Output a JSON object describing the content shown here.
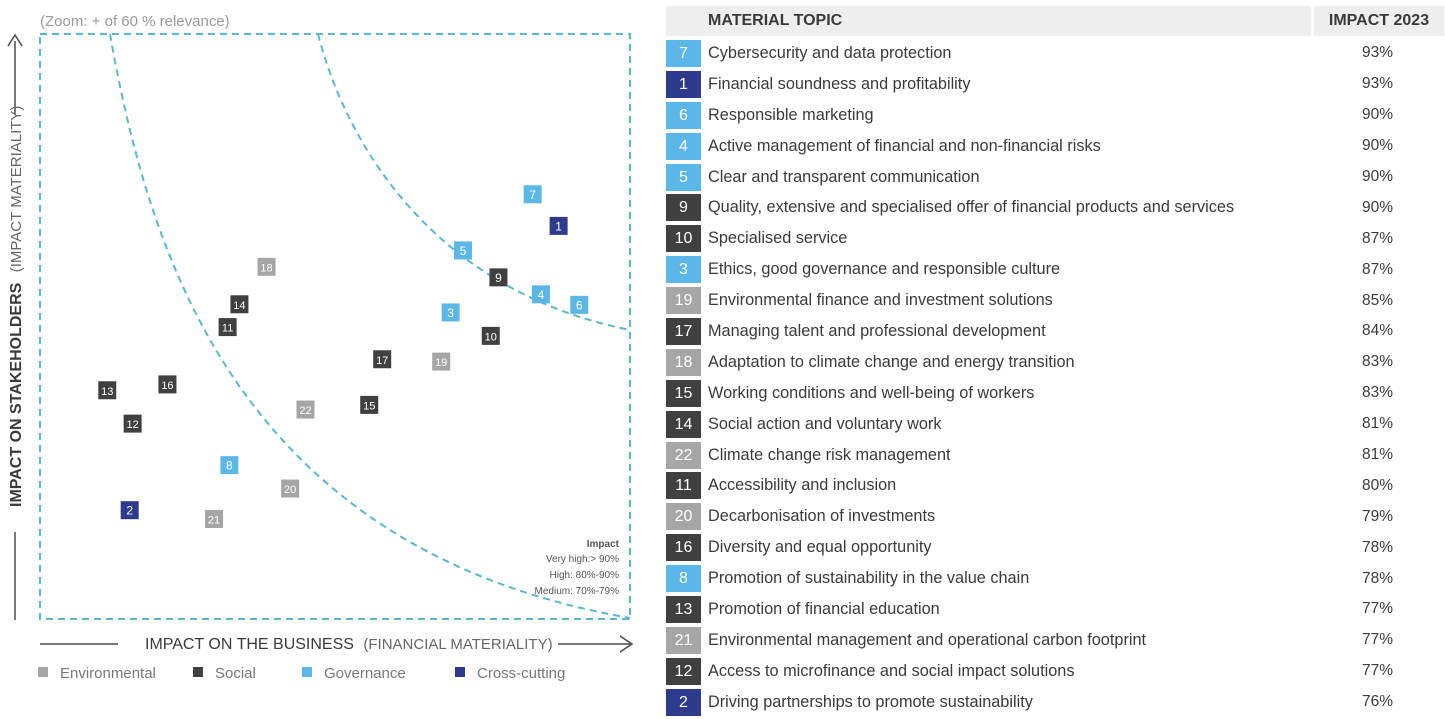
{
  "colors": {
    "environmental": "#a6a6a6",
    "social": "#404040",
    "governance": "#5bb7e8",
    "cross_cutting": "#2e3a8c",
    "dashed": "#5bb6d1",
    "text": "#3a3a3a",
    "header_bg": "#eeeeee"
  },
  "chart_data": {
    "type": "scatter",
    "zoom_note": "(Zoom: + of 60 % relevance)",
    "ylabel_bold": "IMPACT ON STAKEHOLDERS",
    "ylabel_light": "(IMPACT MATERIALITY)",
    "xlabel_bold": "IMPACT ON THE BUSINESS",
    "xlabel_light": "(FINANCIAL MATERIALITY)",
    "xlim": [
      0,
      100
    ],
    "ylim": [
      0,
      100
    ],
    "impact_legend": {
      "title": "Impact",
      "levels": [
        "Very high:> 90%",
        "High: 80%-90%",
        "Medium: 70%-79%"
      ]
    },
    "legend": [
      {
        "key": "environmental",
        "label": "Environmental"
      },
      {
        "key": "social",
        "label": "Social"
      },
      {
        "key": "governance",
        "label": "Governance"
      },
      {
        "key": "cross_cutting",
        "label": "Cross-cutting"
      }
    ],
    "points": [
      {
        "id": "7",
        "category": "governance",
        "x": 83.5,
        "y": 72.6
      },
      {
        "id": "1",
        "category": "cross_cutting",
        "x": 87.9,
        "y": 67.2
      },
      {
        "id": "5",
        "category": "governance",
        "x": 71.7,
        "y": 63.0
      },
      {
        "id": "9",
        "category": "social",
        "x": 77.7,
        "y": 58.4
      },
      {
        "id": "18",
        "category": "environmental",
        "x": 38.4,
        "y": 60.2
      },
      {
        "id": "4",
        "category": "governance",
        "x": 84.9,
        "y": 55.5
      },
      {
        "id": "6",
        "category": "governance",
        "x": 91.4,
        "y": 53.7
      },
      {
        "id": "14",
        "category": "social",
        "x": 33.8,
        "y": 53.8
      },
      {
        "id": "3",
        "category": "governance",
        "x": 69.6,
        "y": 52.4
      },
      {
        "id": "11",
        "category": "social",
        "x": 31.8,
        "y": 49.9
      },
      {
        "id": "10",
        "category": "social",
        "x": 76.4,
        "y": 48.4
      },
      {
        "id": "17",
        "category": "social",
        "x": 58.0,
        "y": 44.4
      },
      {
        "id": "19",
        "category": "environmental",
        "x": 68.0,
        "y": 44.0
      },
      {
        "id": "13",
        "category": "social",
        "x": 11.4,
        "y": 39.1
      },
      {
        "id": "16",
        "category": "social",
        "x": 21.6,
        "y": 40.1
      },
      {
        "id": "22",
        "category": "environmental",
        "x": 45.0,
        "y": 35.8
      },
      {
        "id": "15",
        "category": "social",
        "x": 55.8,
        "y": 36.6
      },
      {
        "id": "12",
        "category": "social",
        "x": 15.7,
        "y": 33.4
      },
      {
        "id": "8",
        "category": "governance",
        "x": 32.1,
        "y": 26.3
      },
      {
        "id": "20",
        "category": "environmental",
        "x": 42.4,
        "y": 22.3
      },
      {
        "id": "2",
        "category": "cross_cutting",
        "x": 15.2,
        "y": 18.6
      },
      {
        "id": "21",
        "category": "environmental",
        "x": 29.5,
        "y": 17.1
      }
    ]
  },
  "table": {
    "header": {
      "topic": "MATERIAL TOPIC",
      "impact": "IMPACT 2023"
    },
    "rows": [
      {
        "num": "7",
        "category": "governance",
        "topic": "Cybersecurity and data protection",
        "impact": "93%"
      },
      {
        "num": "1",
        "category": "cross_cutting",
        "topic": "Financial soundness and profitability",
        "impact": "93%"
      },
      {
        "num": "6",
        "category": "governance",
        "topic": "Responsible marketing",
        "impact": "90%"
      },
      {
        "num": "4",
        "category": "governance",
        "topic": "Active management of financial and non-financial risks",
        "impact": "90%"
      },
      {
        "num": "5",
        "category": "governance",
        "topic": "Clear and transparent communication",
        "impact": "90%"
      },
      {
        "num": "9",
        "category": "social",
        "topic": "Quality, extensive and specialised offer of financial products and services",
        "impact": "90%"
      },
      {
        "num": "10",
        "category": "social",
        "topic": "Specialised service",
        "impact": "87%"
      },
      {
        "num": "3",
        "category": "governance",
        "topic": "Ethics, good governance and responsible culture",
        "impact": "87%"
      },
      {
        "num": "19",
        "category": "environmental",
        "topic": "Environmental finance and investment solutions",
        "impact": "85%"
      },
      {
        "num": "17",
        "category": "social",
        "topic": "Managing talent and professional development",
        "impact": "84%"
      },
      {
        "num": "18",
        "category": "environmental",
        "topic": "Adaptation to climate change and energy transition",
        "impact": "83%"
      },
      {
        "num": "15",
        "category": "social",
        "topic": "Working conditions and well-being of workers",
        "impact": "83%"
      },
      {
        "num": "14",
        "category": "social",
        "topic": "Social action and voluntary work",
        "impact": "81%"
      },
      {
        "num": "22",
        "category": "environmental",
        "topic": "Climate change risk management",
        "impact": "81%"
      },
      {
        "num": "11",
        "category": "social",
        "topic": "Accessibility and inclusion",
        "impact": "80%"
      },
      {
        "num": "20",
        "category": "environmental",
        "topic": "Decarbonisation of investments",
        "impact": "79%"
      },
      {
        "num": "16",
        "category": "social",
        "topic": "Diversity and equal opportunity",
        "impact": "78%"
      },
      {
        "num": "8",
        "category": "governance",
        "topic": "Promotion of sustainability in the value chain",
        "impact": "78%"
      },
      {
        "num": "13",
        "category": "social",
        "topic": "Promotion of financial education",
        "impact": "77%"
      },
      {
        "num": "21",
        "category": "environmental",
        "topic": "Environmental management and operational carbon footprint",
        "impact": "77%"
      },
      {
        "num": "12",
        "category": "social",
        "topic": "Access to microfinance and social impact solutions",
        "impact": "77%"
      },
      {
        "num": "2",
        "category": "cross_cutting",
        "topic": "Driving partnerships to promote sustainability",
        "impact": "76%"
      }
    ]
  }
}
